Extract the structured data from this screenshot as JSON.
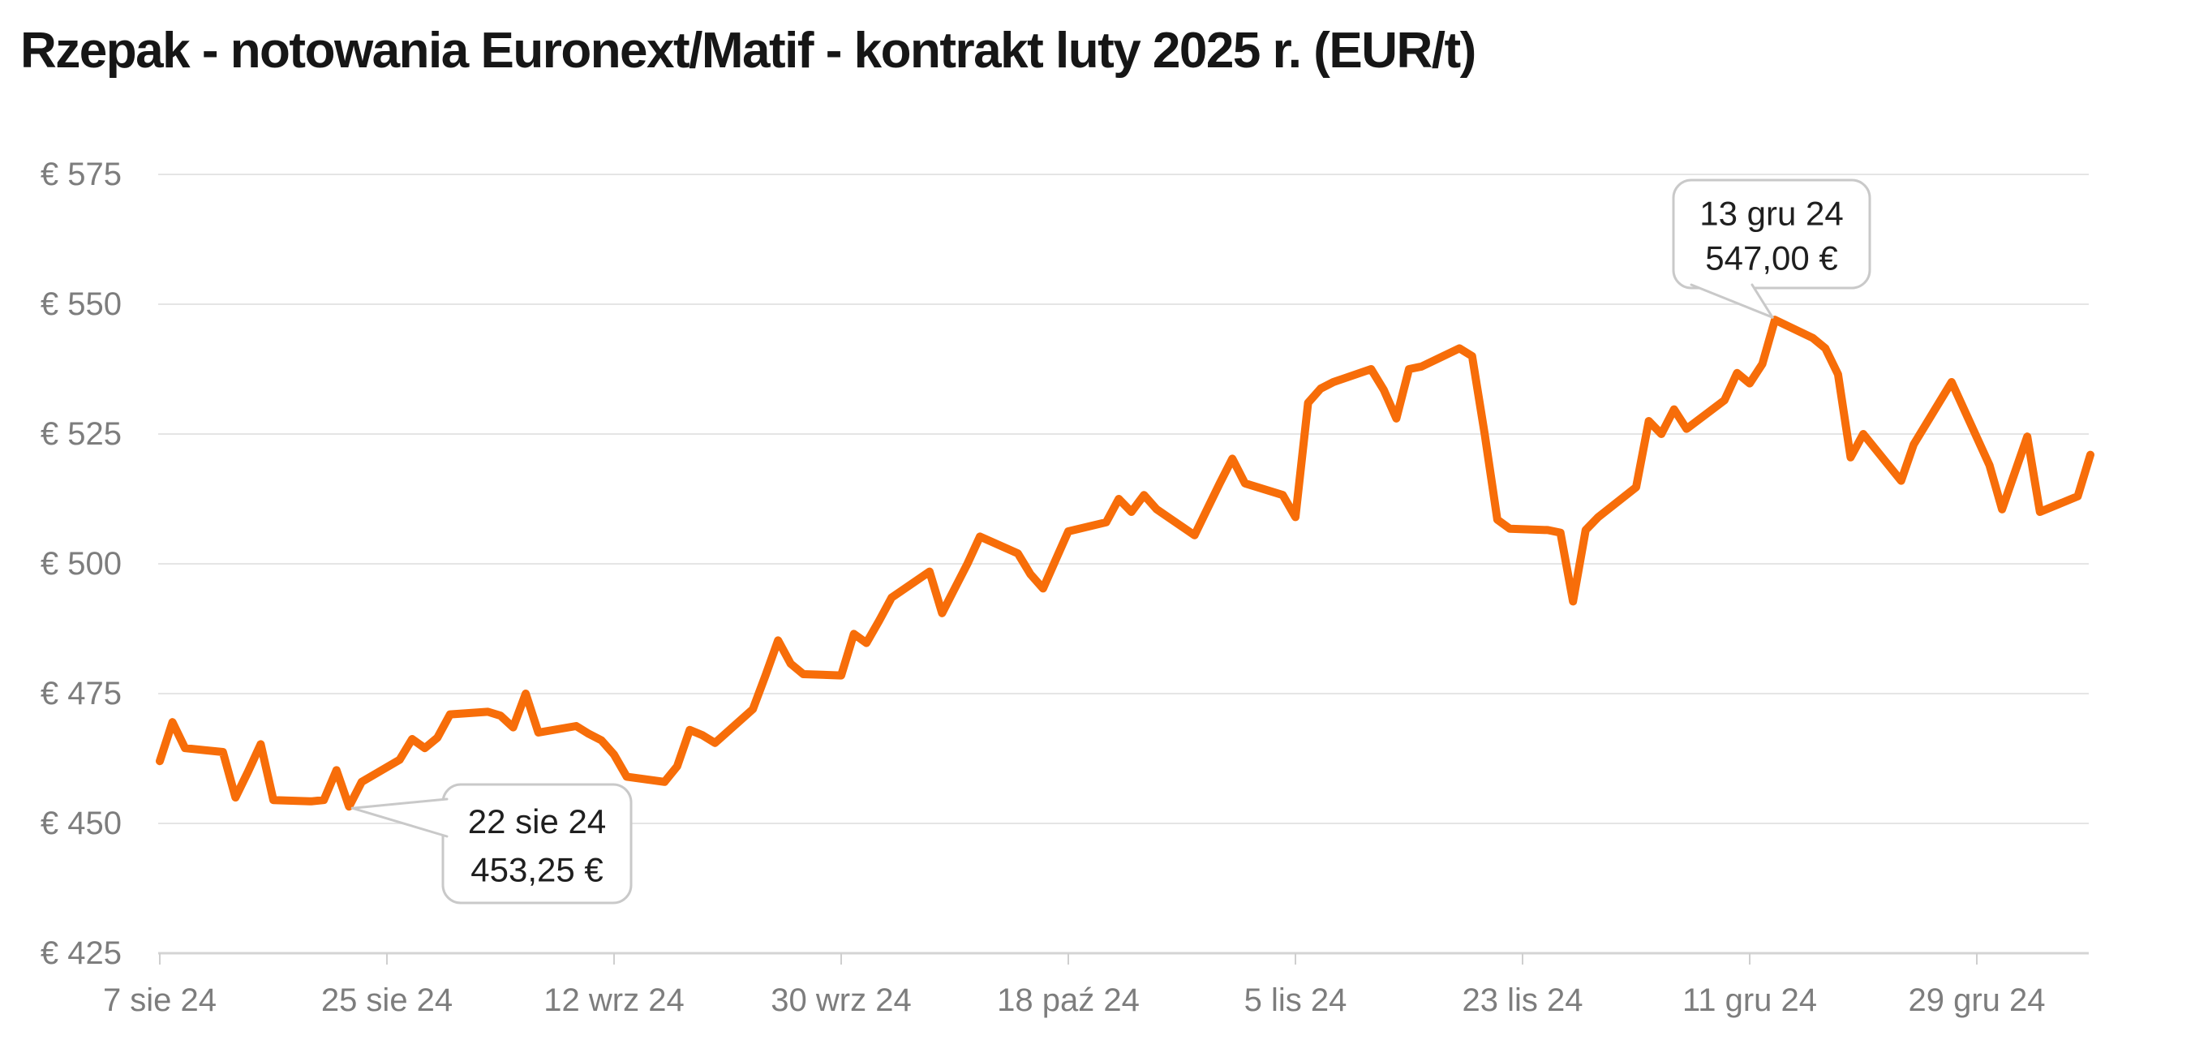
{
  "title": "Rzepak - notowania Euronext/Matif - kontrakt luty 2025 r. (EUR/t)",
  "colors": {
    "line": "#f76d09",
    "grid": "#e5e5e5",
    "axis": "#d4d4d4",
    "tick": "#cfcfcf",
    "axis_label": "#7d7d7d",
    "title_text": "#161616",
    "callout_border": "#c9c9c9",
    "callout_fill": "#ffffff",
    "callout_text": "#1f1f1f",
    "background": "#ffffff"
  },
  "chart_data": {
    "type": "line",
    "title": "Rzepak - notowania Euronext/Matif - kontrakt luty 2025 r. (EUR/t)",
    "unit": "EUR/t",
    "currency": "EUR",
    "xlabel": "",
    "ylabel": "",
    "ylim": [
      425,
      575
    ],
    "grid": true,
    "legend": false,
    "start_date": "2024-08-07",
    "end_date": "2025-01-07",
    "y_ticks": [
      {
        "label": "€ 575",
        "value": 575
      },
      {
        "label": "€ 550",
        "value": 550
      },
      {
        "label": "€ 525",
        "value": 525
      },
      {
        "label": "€ 500",
        "value": 500
      },
      {
        "label": "€ 475",
        "value": 475
      },
      {
        "label": "€ 450",
        "value": 450
      },
      {
        "label": "€ 425",
        "value": 425
      }
    ],
    "x_ticks": [
      {
        "label": "7 sie 24",
        "date": "2024-08-07"
      },
      {
        "label": "25 sie 24",
        "date": "2024-08-25"
      },
      {
        "label": "12 wrz 24",
        "date": "2024-09-12"
      },
      {
        "label": "30 wrz 24",
        "date": "2024-09-30"
      },
      {
        "label": "18 paź 24",
        "date": "2024-10-18"
      },
      {
        "label": "5 lis 24",
        "date": "2024-11-05"
      },
      {
        "label": "23 lis 24",
        "date": "2024-11-23"
      },
      {
        "label": "11 gru 24",
        "date": "2024-12-11"
      },
      {
        "label": "29 gru 24",
        "date": "2024-12-29"
      }
    ],
    "annotations": [
      {
        "id": "min-callout",
        "date_label": "22 sie 24",
        "value_label": "453,25 €",
        "date": "2024-08-22",
        "value": 453.25
      },
      {
        "id": "max-callout",
        "date_label": "13 gru 24",
        "value_label": "547,00 €",
        "date": "2024-12-13",
        "value": 547.0
      }
    ],
    "series": [
      {
        "name": "Rzepak - kontrakt luty 2025 (EUR/t)",
        "color": "#f76d09",
        "points": [
          {
            "d": "2024-08-07",
            "v": 462.0
          },
          {
            "d": "2024-08-08",
            "v": 469.5
          },
          {
            "d": "2024-08-09",
            "v": 464.5
          },
          {
            "d": "2024-08-12",
            "v": 463.75
          },
          {
            "d": "2024-08-13",
            "v": 455.0
          },
          {
            "d": "2024-08-14",
            "v": 460.0
          },
          {
            "d": "2024-08-15",
            "v": 465.25
          },
          {
            "d": "2024-08-16",
            "v": 454.5
          },
          {
            "d": "2024-08-19",
            "v": 454.25
          },
          {
            "d": "2024-08-20",
            "v": 454.5
          },
          {
            "d": "2024-08-21",
            "v": 460.25
          },
          {
            "d": "2024-08-22",
            "v": 453.25
          },
          {
            "d": "2024-08-23",
            "v": 458.0
          },
          {
            "d": "2024-08-26",
            "v": 462.25
          },
          {
            "d": "2024-08-27",
            "v": 466.25
          },
          {
            "d": "2024-08-28",
            "v": 464.5
          },
          {
            "d": "2024-08-29",
            "v": 466.5
          },
          {
            "d": "2024-08-30",
            "v": 471.0
          },
          {
            "d": "2024-09-02",
            "v": 471.5
          },
          {
            "d": "2024-09-03",
            "v": 470.75
          },
          {
            "d": "2024-09-04",
            "v": 468.5
          },
          {
            "d": "2024-09-05",
            "v": 475.0
          },
          {
            "d": "2024-09-06",
            "v": 467.5
          },
          {
            "d": "2024-09-09",
            "v": 468.75
          },
          {
            "d": "2024-09-10",
            "v": 467.25
          },
          {
            "d": "2024-09-11",
            "v": 466.0
          },
          {
            "d": "2024-09-12",
            "v": 463.25
          },
          {
            "d": "2024-09-13",
            "v": 459.0
          },
          {
            "d": "2024-09-16",
            "v": 458.0
          },
          {
            "d": "2024-09-17",
            "v": 461.0
          },
          {
            "d": "2024-09-18",
            "v": 468.0
          },
          {
            "d": "2024-09-19",
            "v": 467.0
          },
          {
            "d": "2024-09-20",
            "v": 465.5
          },
          {
            "d": "2024-09-23",
            "v": 472.0
          },
          {
            "d": "2024-09-24",
            "v": 478.5
          },
          {
            "d": "2024-09-25",
            "v": 485.25
          },
          {
            "d": "2024-09-26",
            "v": 480.75
          },
          {
            "d": "2024-09-27",
            "v": 478.75
          },
          {
            "d": "2024-09-30",
            "v": 478.5
          },
          {
            "d": "2024-10-01",
            "v": 486.5
          },
          {
            "d": "2024-10-02",
            "v": 484.75
          },
          {
            "d": "2024-10-03",
            "v": 489.0
          },
          {
            "d": "2024-10-04",
            "v": 493.5
          },
          {
            "d": "2024-10-07",
            "v": 498.5
          },
          {
            "d": "2024-10-08",
            "v": 490.5
          },
          {
            "d": "2024-10-09",
            "v": 495.25
          },
          {
            "d": "2024-10-10",
            "v": 500.0
          },
          {
            "d": "2024-10-11",
            "v": 505.25
          },
          {
            "d": "2024-10-14",
            "v": 502.0
          },
          {
            "d": "2024-10-15",
            "v": 498.0
          },
          {
            "d": "2024-10-16",
            "v": 495.25
          },
          {
            "d": "2024-10-17",
            "v": 500.75
          },
          {
            "d": "2024-10-18",
            "v": 506.25
          },
          {
            "d": "2024-10-21",
            "v": 508.0
          },
          {
            "d": "2024-10-22",
            "v": 512.5
          },
          {
            "d": "2024-10-23",
            "v": 510.0
          },
          {
            "d": "2024-10-24",
            "v": 513.25
          },
          {
            "d": "2024-10-25",
            "v": 510.5
          },
          {
            "d": "2024-10-28",
            "v": 505.5
          },
          {
            "d": "2024-10-29",
            "v": 510.5
          },
          {
            "d": "2024-10-30",
            "v": 515.5
          },
          {
            "d": "2024-10-31",
            "v": 520.25
          },
          {
            "d": "2024-11-01",
            "v": 515.5
          },
          {
            "d": "2024-11-04",
            "v": 513.25
          },
          {
            "d": "2024-11-05",
            "v": 509.0
          },
          {
            "d": "2024-11-06",
            "v": 531.0
          },
          {
            "d": "2024-11-07",
            "v": 533.75
          },
          {
            "d": "2024-11-08",
            "v": 535.0
          },
          {
            "d": "2024-11-11",
            "v": 537.5
          },
          {
            "d": "2024-11-12",
            "v": 533.5
          },
          {
            "d": "2024-11-13",
            "v": 528.0
          },
          {
            "d": "2024-11-14",
            "v": 537.5
          },
          {
            "d": "2024-11-15",
            "v": 538.0
          },
          {
            "d": "2024-11-18",
            "v": 541.5
          },
          {
            "d": "2024-11-19",
            "v": 540.0
          },
          {
            "d": "2024-11-20",
            "v": 525.0
          },
          {
            "d": "2024-11-21",
            "v": 508.5
          },
          {
            "d": "2024-11-22",
            "v": 506.75
          },
          {
            "d": "2024-11-25",
            "v": 506.5
          },
          {
            "d": "2024-11-26",
            "v": 506.0
          },
          {
            "d": "2024-11-27",
            "v": 492.75
          },
          {
            "d": "2024-11-28",
            "v": 506.5
          },
          {
            "d": "2024-11-29",
            "v": 509.0
          },
          {
            "d": "2024-12-02",
            "v": 514.75
          },
          {
            "d": "2024-12-03",
            "v": 527.5
          },
          {
            "d": "2024-12-04",
            "v": 525.0
          },
          {
            "d": "2024-12-05",
            "v": 529.75
          },
          {
            "d": "2024-12-06",
            "v": 526.0
          },
          {
            "d": "2024-12-09",
            "v": 531.5
          },
          {
            "d": "2024-12-10",
            "v": 536.75
          },
          {
            "d": "2024-12-11",
            "v": 534.75
          },
          {
            "d": "2024-12-12",
            "v": 538.5
          },
          {
            "d": "2024-12-13",
            "v": 547.0
          },
          {
            "d": "2024-12-16",
            "v": 543.5
          },
          {
            "d": "2024-12-17",
            "v": 541.5
          },
          {
            "d": "2024-12-18",
            "v": 536.5
          },
          {
            "d": "2024-12-19",
            "v": 520.5
          },
          {
            "d": "2024-12-20",
            "v": 525.0
          },
          {
            "d": "2024-12-23",
            "v": 516.0
          },
          {
            "d": "2024-12-24",
            "v": 523.0
          },
          {
            "d": "2024-12-27",
            "v": 535.0
          },
          {
            "d": "2024-12-30",
            "v": 519.0
          },
          {
            "d": "2024-12-31",
            "v": 510.5
          },
          {
            "d": "2025-01-02",
            "v": 524.5
          },
          {
            "d": "2025-01-03",
            "v": 510.0
          },
          {
            "d": "2025-01-06",
            "v": 513.0
          },
          {
            "d": "2025-01-07",
            "v": 521.0
          }
        ]
      }
    ]
  }
}
